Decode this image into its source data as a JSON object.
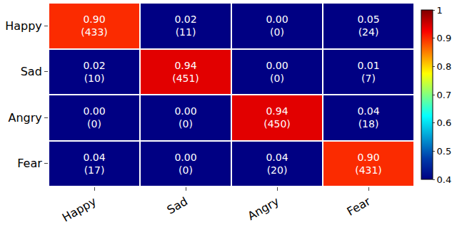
{
  "chart_data": {
    "type": "heatmap",
    "x_categories": [
      "Happy",
      "Sad",
      "Angry",
      "Fear"
    ],
    "y_categories": [
      "Happy",
      "Sad",
      "Angry",
      "Fear"
    ],
    "cells": [
      [
        0.9,
        0.02,
        0.0,
        0.05
      ],
      [
        0.02,
        0.94,
        0.0,
        0.01
      ],
      [
        0.0,
        0.0,
        0.94,
        0.04
      ],
      [
        0.04,
        0.0,
        0.04,
        0.9
      ]
    ],
    "value_labels": [
      [
        "0.90",
        "0.02",
        "0.00",
        "0.05"
      ],
      [
        "0.02",
        "0.94",
        "0.00",
        "0.01"
      ],
      [
        "0.00",
        "0.00",
        "0.94",
        "0.04"
      ],
      [
        "0.04",
        "0.00",
        "0.04",
        "0.90"
      ]
    ],
    "counts": [
      [
        433,
        11,
        0,
        24
      ],
      [
        10,
        451,
        0,
        7
      ],
      [
        0,
        0,
        450,
        18
      ],
      [
        17,
        0,
        20,
        431
      ]
    ],
    "colorbar_range": [
      0.4,
      1
    ],
    "colorbar_ticks": [
      0.4,
      0.5,
      0.6,
      0.7,
      0.8,
      0.9,
      1
    ],
    "data_labels": true
  }
}
